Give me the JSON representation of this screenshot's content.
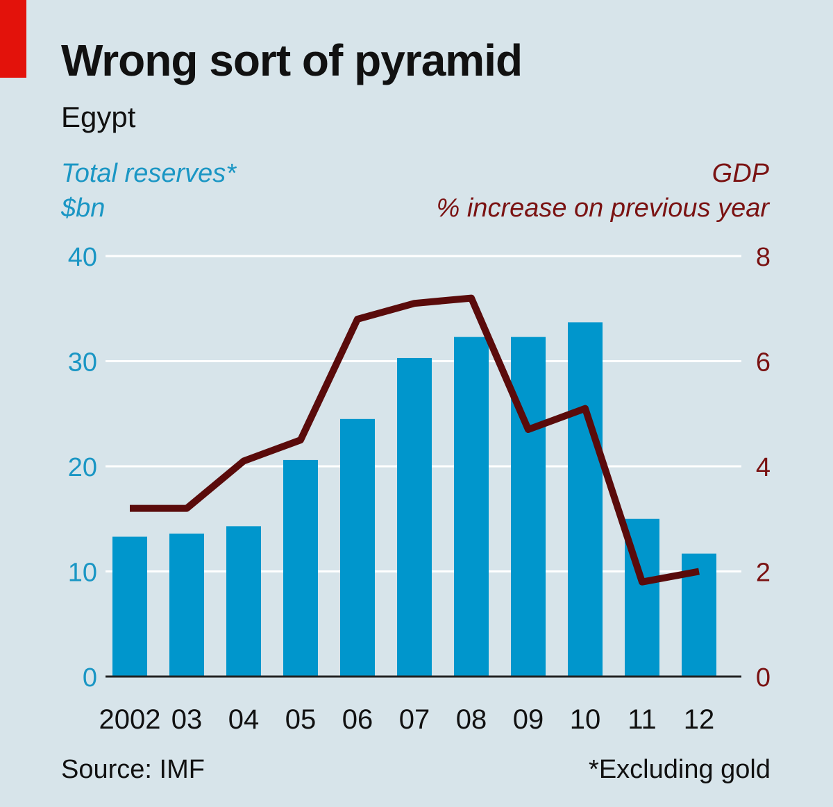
{
  "header": {
    "title": "Wrong sort of pyramid",
    "subtitle": "Egypt"
  },
  "axes": {
    "left_title": "Total reserves*",
    "left_unit": "$bn",
    "right_title": "GDP",
    "right_unit": "% increase on previous year"
  },
  "footer": {
    "source": "Source: IMF",
    "footnote": "*Excluding gold"
  },
  "colors": {
    "bars": "#0096cc",
    "line": "#5a0b0b",
    "left_axis_text": "#1a96c4",
    "right_axis_text": "#7a1212",
    "background": "#d7e4ea",
    "accent": "#e3120b"
  },
  "chart_data": {
    "type": "bar",
    "categories": [
      "2002",
      "03",
      "04",
      "05",
      "06",
      "07",
      "08",
      "09",
      "10",
      "11",
      "12"
    ],
    "series": [
      {
        "name": "Total reserves*",
        "type": "bar",
        "axis": "left",
        "values": [
          13.3,
          13.6,
          14.3,
          20.6,
          24.5,
          30.3,
          32.3,
          32.3,
          33.7,
          15.0,
          11.7
        ]
      },
      {
        "name": "GDP",
        "type": "line",
        "axis": "right",
        "values": [
          3.2,
          3.2,
          4.1,
          4.5,
          6.8,
          7.1,
          7.2,
          4.7,
          5.1,
          1.8,
          2.0
        ]
      }
    ],
    "y_left": {
      "label": "Total reserves*",
      "unit": "$bn",
      "range": [
        0,
        40
      ],
      "ticks": [
        0,
        10,
        20,
        30,
        40
      ]
    },
    "y_right": {
      "label": "GDP",
      "unit": "% increase on previous year",
      "range": [
        0,
        8
      ],
      "ticks": [
        0,
        2,
        4,
        6,
        8
      ]
    },
    "grid": true
  }
}
